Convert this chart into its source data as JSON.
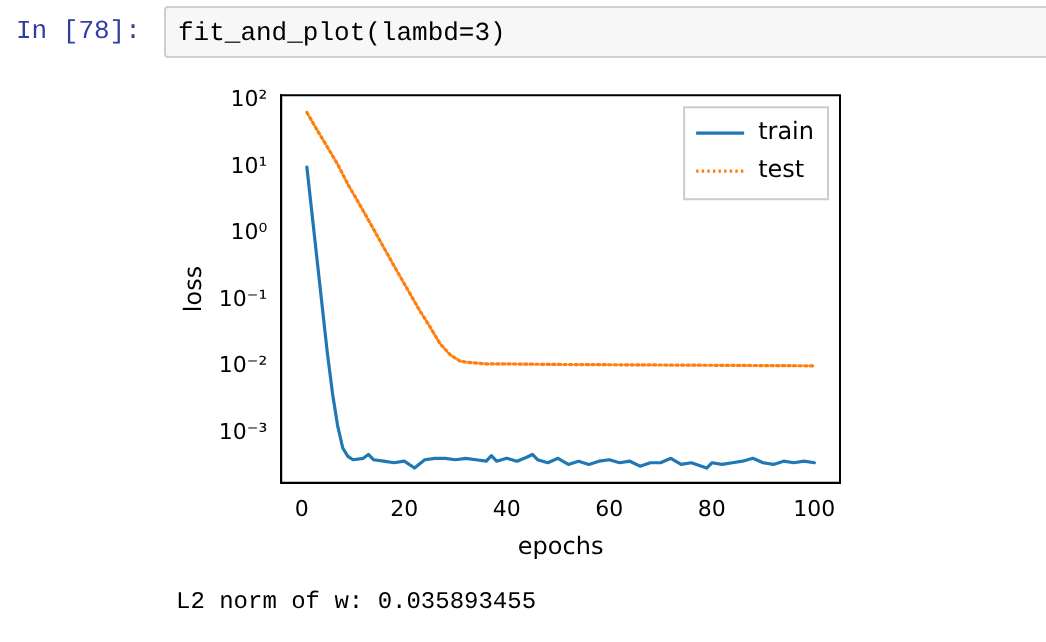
{
  "chart_data": {
    "type": "line",
    "xlabel": "epochs",
    "ylabel": "loss",
    "annotations": [
      "In [78]:",
      "fit_and_plot(lambd=3)",
      "L2 norm of w: 0.035893455"
    ],
    "log": "y",
    "grid": false,
    "legend": "top right",
    "marker": "none",
    "xlim": [
      -4,
      105
    ],
    "xticks": [
      0,
      20,
      40,
      60,
      80,
      100
    ],
    "ylim": [
      0.00018,
      120
    ],
    "yticks": [
      {
        "value": 0.001,
        "label": "10⁻³"
      },
      {
        "value": 0.01,
        "label": "10⁻²"
      },
      {
        "value": 0.1,
        "label": "10⁻¹"
      },
      {
        "value": 1,
        "label": "10⁰"
      },
      {
        "value": 10,
        "label": "10¹"
      },
      {
        "value": 100,
        "label": "10²"
      }
    ],
    "series": [
      {
        "name": "train",
        "color": "#1f77b4",
        "line_style": "solid",
        "x": [
          1,
          2,
          3,
          4,
          5,
          6,
          7,
          8,
          9,
          10,
          12,
          13,
          14,
          16,
          18,
          20,
          22,
          24,
          26,
          28,
          30,
          32,
          34,
          36,
          37,
          38,
          40,
          42,
          44,
          45,
          46,
          48,
          50,
          52,
          54,
          56,
          58,
          60,
          62,
          64,
          66,
          68,
          70,
          72,
          74,
          76,
          78,
          79,
          80,
          82,
          84,
          86,
          88,
          90,
          92,
          94,
          96,
          98,
          100
        ],
        "values": [
          10,
          2,
          0.4,
          0.08,
          0.016,
          0.004,
          0.0013,
          0.0006,
          0.00045,
          0.0004,
          0.00042,
          0.00048,
          0.0004,
          0.00038,
          0.00036,
          0.00038,
          0.0003,
          0.0004,
          0.00042,
          0.00042,
          0.0004,
          0.00042,
          0.0004,
          0.00038,
          0.00046,
          0.00038,
          0.00042,
          0.00038,
          0.00044,
          0.00048,
          0.0004,
          0.00036,
          0.00042,
          0.00034,
          0.00038,
          0.00034,
          0.00038,
          0.0004,
          0.00036,
          0.00038,
          0.00032,
          0.00036,
          0.00036,
          0.00042,
          0.00034,
          0.00036,
          0.00032,
          0.0003,
          0.00036,
          0.00034,
          0.00036,
          0.00038,
          0.00042,
          0.00036,
          0.00034,
          0.00038,
          0.00036,
          0.00038,
          0.00036
        ]
      },
      {
        "name": "test",
        "color": "#ff7f0e",
        "line_style": "dotted",
        "x": [
          1,
          3,
          5,
          7,
          9,
          11,
          13,
          15,
          17,
          19,
          21,
          23,
          25,
          27,
          29,
          31,
          33,
          36,
          40,
          50,
          60,
          70,
          80,
          90,
          100
        ],
        "values": [
          66,
          36,
          20,
          11,
          5.5,
          3,
          1.6,
          0.85,
          0.45,
          0.24,
          0.13,
          0.07,
          0.04,
          0.022,
          0.015,
          0.012,
          0.0115,
          0.011,
          0.011,
          0.0108,
          0.0107,
          0.0106,
          0.0105,
          0.0104,
          0.0103
        ]
      }
    ]
  }
}
